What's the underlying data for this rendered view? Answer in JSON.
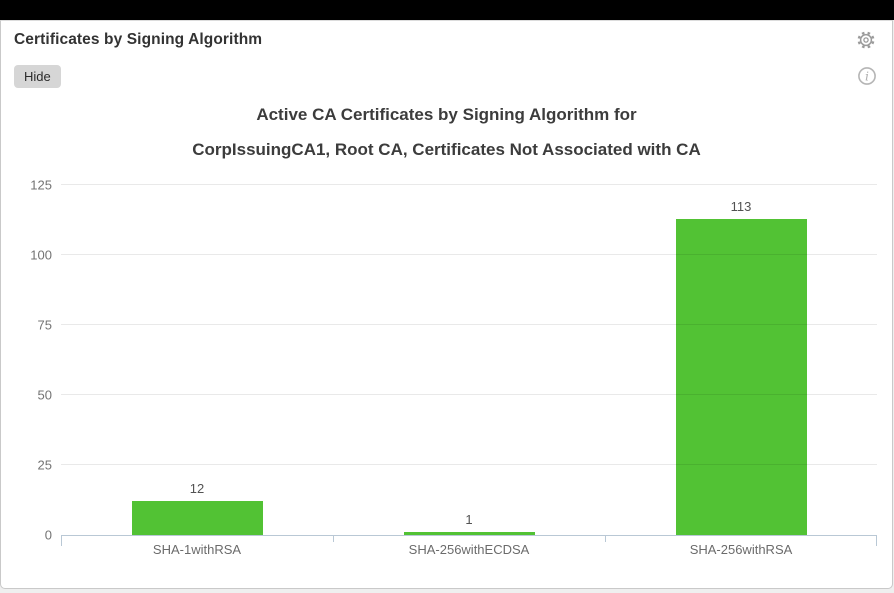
{
  "panel": {
    "title": "Certificates by Signing Algorithm",
    "hide_button_label": "Hide",
    "icons": {
      "settings": "gear-icon",
      "info": "info-circle-icon"
    }
  },
  "colors": {
    "bar_green": "#52c234",
    "axis_line": "#b9c8d5",
    "topbar_black": "#000000",
    "panel_background": "#ffffff",
    "icon_gray": "#9b9b9b"
  },
  "chart_data": {
    "type": "bar",
    "title_line1": "Active CA Certificates by Signing Algorithm for",
    "title_line2": "CorpIssuingCA1, Root CA, Certificates Not Associated with CA",
    "categories": [
      "SHA-1withRSA",
      "SHA-256withECDSA",
      "SHA-256withRSA"
    ],
    "values": [
      12,
      1,
      113
    ],
    "yticks": [
      0,
      25,
      50,
      75,
      100,
      125
    ],
    "ylim": [
      0,
      125
    ],
    "xlabel": "",
    "ylabel": "",
    "grid": true,
    "legend": false,
    "bar_color": "#52c234"
  }
}
